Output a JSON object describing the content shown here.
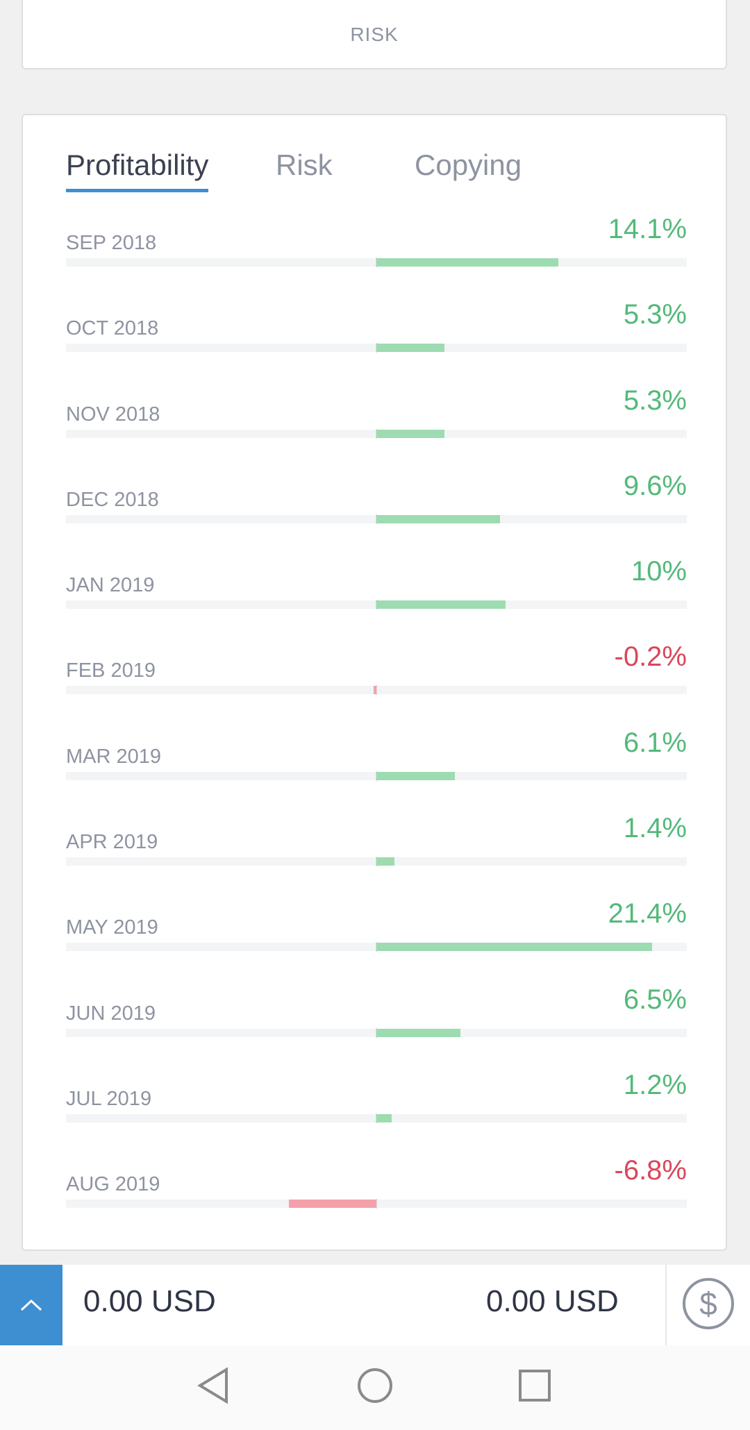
{
  "risk_card": {
    "caption": "RISK"
  },
  "tabs": [
    {
      "label": "Profitability",
      "active": true
    },
    {
      "label": "Risk",
      "active": false
    },
    {
      "label": "Copying",
      "active": false
    }
  ],
  "monthly_returns": [
    {
      "month": "SEP 2018",
      "label": "14.1%",
      "value": 14.1
    },
    {
      "month": "OCT 2018",
      "label": "5.3%",
      "value": 5.3
    },
    {
      "month": "NOV 2018",
      "label": "5.3%",
      "value": 5.3
    },
    {
      "month": "DEC 2018",
      "label": "9.6%",
      "value": 9.6
    },
    {
      "month": "JAN 2019",
      "label": "10%",
      "value": 10
    },
    {
      "month": "FEB 2019",
      "label": "-0.2%",
      "value": -0.2
    },
    {
      "month": "MAR 2019",
      "label": "6.1%",
      "value": 6.1
    },
    {
      "month": "APR 2019",
      "label": "1.4%",
      "value": 1.4
    },
    {
      "month": "MAY 2019",
      "label": "21.4%",
      "value": 21.4
    },
    {
      "month": "JUN 2019",
      "label": "6.5%",
      "value": 6.5
    },
    {
      "month": "JUL 2019",
      "label": "1.2%",
      "value": 1.2
    },
    {
      "month": "AUG 2019",
      "label": "-6.8%",
      "value": -6.8
    }
  ],
  "colors": {
    "positive_bar": "#9ddbb1",
    "negative_bar": "#f4a0ab",
    "accent": "#3d8fd2"
  },
  "bottom_bar": {
    "left_amount": "0.00 USD",
    "right_amount": "0.00 USD",
    "expand_icon": "chevron-up-icon",
    "currency_icon": "dollar-icon"
  },
  "system_nav": {
    "back_icon": "back-triangle-icon",
    "home_icon": "home-circle-icon",
    "recents_icon": "recents-square-icon"
  }
}
